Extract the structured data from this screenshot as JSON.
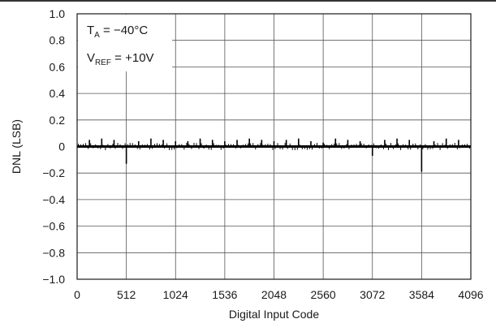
{
  "chart_data": {
    "type": "line",
    "xlabel": "Digital Input Code",
    "ylabel": "DNL (LSB)",
    "xlim": [
      0,
      4096
    ],
    "ylim": [
      -1.0,
      1.0
    ],
    "grid": true,
    "x_ticks": [
      0,
      512,
      1024,
      1536,
      2048,
      2560,
      3072,
      3584,
      4096
    ],
    "x_tick_labels": [
      "0",
      "512",
      "1024",
      "1536",
      "2048",
      "2560",
      "3072",
      "3584",
      "4096"
    ],
    "y_ticks": [
      1.0,
      0.8,
      0.6,
      0.4,
      0.2,
      0,
      -0.2,
      -0.4,
      -0.6,
      -0.8,
      -1.0
    ],
    "y_tick_labels": [
      "1.0",
      "0.8",
      "0.6",
      "0.4",
      "0.2",
      "0",
      "−0.2",
      "−0.4",
      "−0.6",
      "−0.8",
      "−1.0"
    ],
    "annotations": [
      {
        "main": "T",
        "sub": "A",
        "rest": " = −40°C"
      },
      {
        "main": "V",
        "sub": "REF",
        "rest": " = +10V"
      }
    ],
    "series": [
      {
        "baseline": 0.0,
        "spikes": [
          {
            "x": 128,
            "y": 0.05
          },
          {
            "x": 256,
            "y": 0.06
          },
          {
            "x": 384,
            "y": 0.05
          },
          {
            "x": 512,
            "y": -0.13
          },
          {
            "x": 640,
            "y": 0.04
          },
          {
            "x": 768,
            "y": 0.06
          },
          {
            "x": 896,
            "y": 0.05
          },
          {
            "x": 1024,
            "y": 0.04
          },
          {
            "x": 1152,
            "y": 0.04
          },
          {
            "x": 1280,
            "y": 0.06
          },
          {
            "x": 1408,
            "y": 0.05
          },
          {
            "x": 1536,
            "y": 0.04
          },
          {
            "x": 1664,
            "y": 0.05
          },
          {
            "x": 1792,
            "y": 0.06
          },
          {
            "x": 1920,
            "y": 0.05
          },
          {
            "x": 2048,
            "y": 0.04
          },
          {
            "x": 2176,
            "y": 0.05
          },
          {
            "x": 2304,
            "y": 0.06
          },
          {
            "x": 2432,
            "y": 0.04
          },
          {
            "x": 2560,
            "y": 0.03
          },
          {
            "x": 2688,
            "y": 0.06
          },
          {
            "x": 2816,
            "y": 0.05
          },
          {
            "x": 2944,
            "y": 0.04
          },
          {
            "x": 3072,
            "y": -0.07
          },
          {
            "x": 3200,
            "y": 0.05
          },
          {
            "x": 3328,
            "y": 0.06
          },
          {
            "x": 3456,
            "y": 0.05
          },
          {
            "x": 3584,
            "y": -0.19
          },
          {
            "x": 3712,
            "y": 0.04
          },
          {
            "x": 3840,
            "y": 0.06
          },
          {
            "x": 3968,
            "y": 0.05
          }
        ]
      }
    ]
  }
}
